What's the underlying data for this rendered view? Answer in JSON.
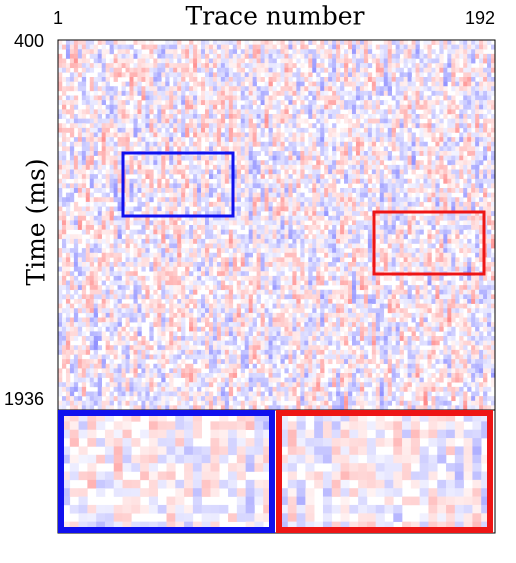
{
  "chart_data": {
    "type": "image",
    "xlabel": "Trace number",
    "ylabel": "Time (ms)",
    "xlim": [
      1,
      192
    ],
    "xticks": [
      1,
      192
    ],
    "ylim": [
      400,
      1936
    ],
    "yticks": [
      400,
      1936
    ]
  }
}
